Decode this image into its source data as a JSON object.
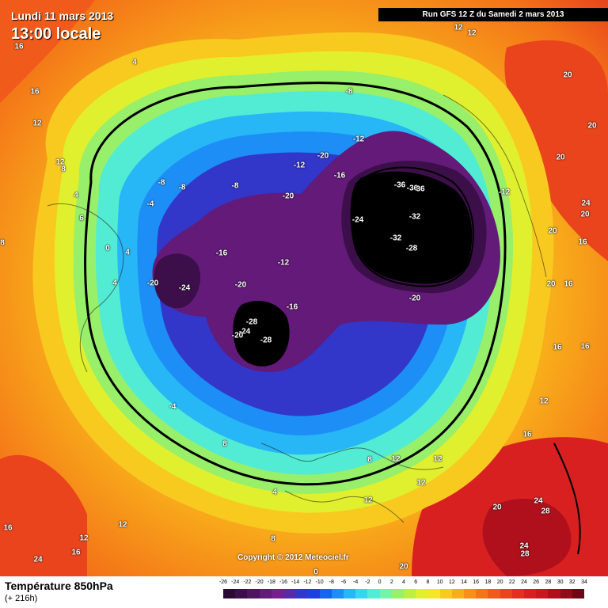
{
  "header": {
    "valid_date": "Lundi 11 mars 2013",
    "valid_time": "13:00 locale",
    "run": "Run GFS 12 Z du Samedi 2 mars 2013"
  },
  "footer": {
    "title": "Température 850hPa",
    "forecast_hour": "(+ 216h)",
    "copyright": "Copyright © 2012 Meteociel.fr"
  },
  "legend": {
    "labels": [
      "-26",
      "-24",
      "-22",
      "-20",
      "-18",
      "-16",
      "-14",
      "-12",
      "-10",
      "-8",
      "-6",
      "-4",
      "-2",
      "0",
      "2",
      "4",
      "6",
      "8",
      "10",
      "12",
      "14",
      "16",
      "18",
      "20",
      "22",
      "24",
      "26",
      "28",
      "30",
      "32",
      "34"
    ],
    "colors": [
      "#2b0a35",
      "#3c0f4a",
      "#4e1460",
      "#631a78",
      "#781f8f",
      "#5a2aa6",
      "#3236c9",
      "#1e40e0",
      "#1565f0",
      "#1c8ef6",
      "#27b6f6",
      "#35d7f0",
      "#52ecd4",
      "#74f2a8",
      "#98ef6a",
      "#bdee42",
      "#e0f02e",
      "#f6e628",
      "#f8ca20",
      "#f8ad1a",
      "#f69018",
      "#f47418",
      "#f05a1a",
      "#ea441c",
      "#e2301e",
      "#d82020",
      "#c81820",
      "#b0101c",
      "#900a18",
      "#700814"
    ]
  },
  "map_labels": [
    "16",
    "4",
    "16",
    "12",
    "12",
    "8",
    "4",
    "6",
    "8",
    "0",
    "4",
    "4",
    "-20",
    "-24",
    "-8",
    "-8",
    "-8",
    "-4",
    "-8",
    "-12",
    "-20",
    "-12",
    "-20",
    "-16",
    "-16",
    "-12",
    "-20",
    "-16",
    "-28",
    "-24",
    "-20",
    "-28",
    "-4",
    "8",
    "-36",
    "-36",
    "36",
    "-12",
    "-24",
    "-32",
    "-32",
    "-28",
    "-20",
    "12",
    "12",
    "12",
    "20",
    "20",
    "20",
    "24",
    "20",
    "20",
    "16",
    "20",
    "16",
    "16",
    "16",
    "16",
    "12",
    "12",
    "8",
    "12",
    "8",
    "12",
    "4",
    "0",
    "12",
    "12",
    "20",
    "24",
    "28",
    "24",
    "28",
    "16",
    "16",
    "20",
    "24"
  ],
  "colors": {
    "ocean_frame": "#f59a1a",
    "run_bar": "#000000"
  }
}
